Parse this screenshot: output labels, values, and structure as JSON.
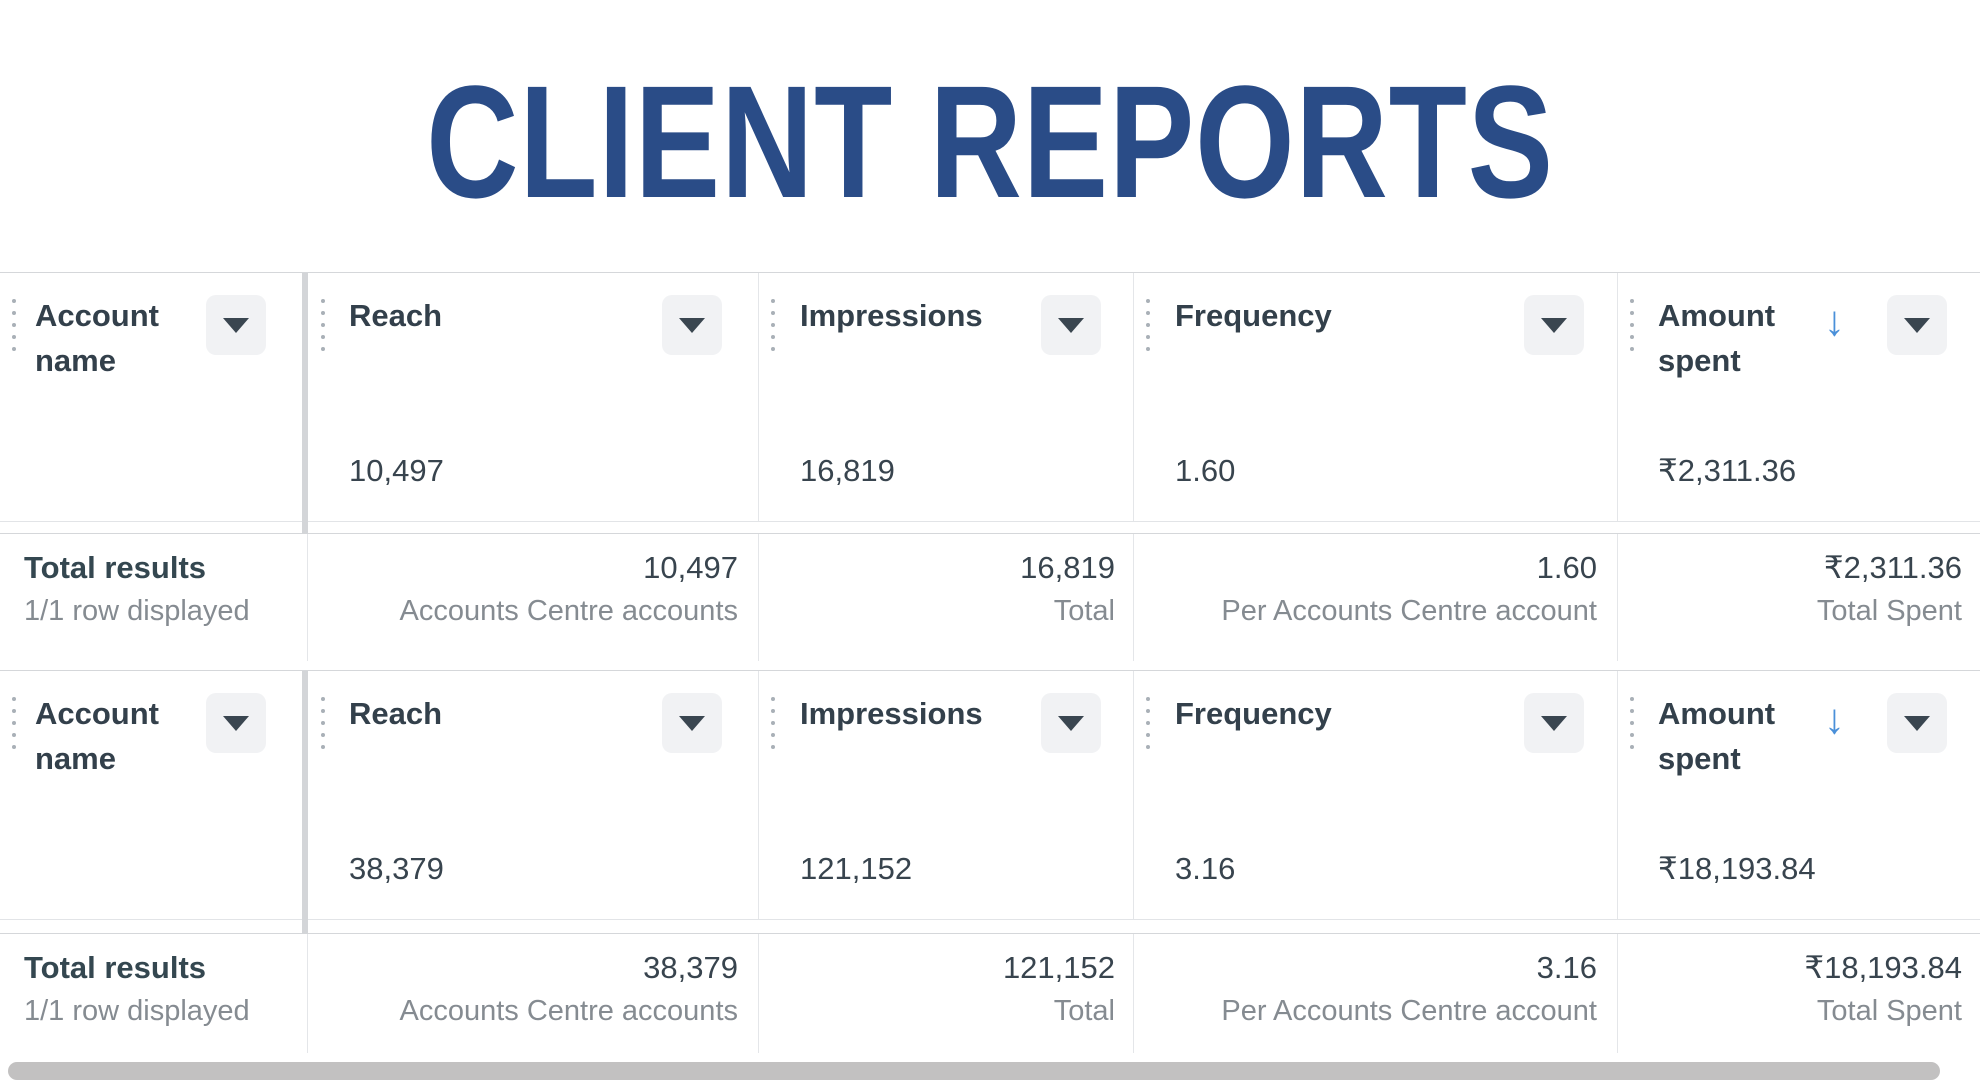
{
  "page_title": "CLIENT REPORTS",
  "colors": {
    "title_navy": "#2a4c87",
    "header_text": "#33404b",
    "value_text": "#38444e",
    "muted_text": "#858b91",
    "border": "#d5d7da",
    "column_divider": "#e4e6e9",
    "menu_button_bg": "#f1f2f4",
    "sort_arrow_blue": "#4a90d9",
    "scrollbar_gray": "#c2c1c1"
  },
  "icons": {
    "sort_descending_glyph": "↓"
  },
  "tables": [
    {
      "columns": [
        {
          "label": "Account name"
        },
        {
          "label": "Reach"
        },
        {
          "label": "Impressions"
        },
        {
          "label": "Frequency"
        },
        {
          "label": "Amount spent"
        }
      ],
      "row": {
        "reach": "10,497",
        "impressions": "16,819",
        "frequency": "1.60",
        "amount_spent": "₹2,311.36"
      },
      "footer": {
        "title": "Total results",
        "subtitle": "1/1 row displayed",
        "cells": [
          {
            "value": "10,497",
            "label": "Accounts Centre accounts"
          },
          {
            "value": "16,819",
            "label": "Total"
          },
          {
            "value": "1.60",
            "label": "Per Accounts Centre account"
          },
          {
            "value": "₹2,311.36",
            "label": "Total Spent"
          }
        ]
      }
    },
    {
      "columns": [
        {
          "label": "Account name"
        },
        {
          "label": "Reach"
        },
        {
          "label": "Impressions"
        },
        {
          "label": "Frequency"
        },
        {
          "label": "Amount spent"
        }
      ],
      "row": {
        "reach": "38,379",
        "impressions": "121,152",
        "frequency": "3.16",
        "amount_spent": "₹18,193.84"
      },
      "footer": {
        "title": "Total results",
        "subtitle": "1/1 row displayed",
        "cells": [
          {
            "value": "38,379",
            "label": "Accounts Centre accounts"
          },
          {
            "value": "121,152",
            "label": "Total"
          },
          {
            "value": "3.16",
            "label": "Per Accounts Centre account"
          },
          {
            "value": "₹18,193.84",
            "label": "Total Spent"
          }
        ]
      }
    }
  ]
}
